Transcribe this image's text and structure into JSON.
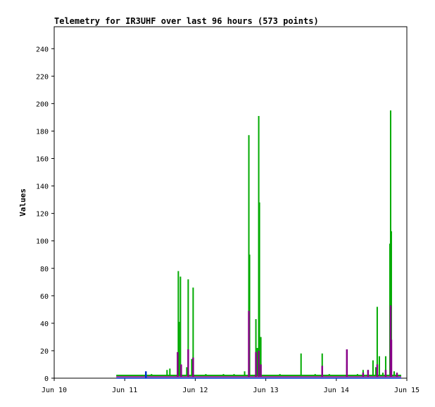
{
  "chart_data": {
    "type": "line",
    "title": "Telemetry for IR3UHF over last 96 hours (573 points)",
    "xlabel": "",
    "ylabel": "Values",
    "ylim": [
      0,
      256
    ],
    "yticks": [
      0,
      20,
      40,
      60,
      80,
      100,
      120,
      140,
      160,
      180,
      200,
      220,
      240
    ],
    "xticks": [
      "Jun 10",
      "Jun 11",
      "Jun 12",
      "Jun 13",
      "Jun 14",
      "Jun 15"
    ],
    "grid": false,
    "legend": "none",
    "colors": {
      "green": "#00aa00",
      "purple": "#880088",
      "blue": "#0033cc",
      "red": "#cc0000",
      "darkgreen": "#006600"
    },
    "series": [
      {
        "color": "#00aa00",
        "baseline": 2,
        "x_start_day": 0.88,
        "spikes": [
          [
            1.38,
            3
          ],
          [
            1.6,
            6
          ],
          [
            1.64,
            7
          ],
          [
            1.76,
            78
          ],
          [
            1.77,
            41
          ],
          [
            1.79,
            74
          ],
          [
            1.88,
            8
          ],
          [
            1.9,
            72
          ],
          [
            1.95,
            14
          ],
          [
            1.97,
            66
          ],
          [
            2.15,
            3
          ],
          [
            2.4,
            3
          ],
          [
            2.55,
            3
          ],
          [
            2.7,
            5
          ],
          [
            2.76,
            177
          ],
          [
            2.77,
            90
          ],
          [
            2.86,
            43
          ],
          [
            2.88,
            22
          ],
          [
            2.9,
            191
          ],
          [
            2.91,
            128
          ],
          [
            2.93,
            30
          ],
          [
            3.2,
            3
          ],
          [
            3.5,
            18
          ],
          [
            3.7,
            3
          ],
          [
            3.8,
            18
          ],
          [
            3.9,
            3
          ],
          [
            4.15,
            10
          ],
          [
            4.3,
            3
          ],
          [
            4.38,
            6
          ],
          [
            4.45,
            6
          ],
          [
            4.52,
            13
          ],
          [
            4.56,
            8
          ],
          [
            4.58,
            52
          ],
          [
            4.61,
            16
          ],
          [
            4.66,
            4
          ],
          [
            4.7,
            16
          ],
          [
            4.76,
            98
          ],
          [
            4.77,
            195
          ],
          [
            4.78,
            107
          ],
          [
            4.82,
            5
          ],
          [
            4.86,
            3
          ]
        ]
      },
      {
        "color": "#880088",
        "baseline": 1,
        "x_start_day": 0.88,
        "spikes": [
          [
            1.75,
            19
          ],
          [
            1.8,
            10
          ],
          [
            1.9,
            21
          ],
          [
            1.97,
            15
          ],
          [
            2.76,
            49
          ],
          [
            2.86,
            19
          ],
          [
            2.9,
            20
          ],
          [
            2.93,
            10
          ],
          [
            3.8,
            9
          ],
          [
            4.15,
            21
          ],
          [
            4.38,
            4
          ],
          [
            4.45,
            6
          ],
          [
            4.58,
            10
          ],
          [
            4.7,
            6
          ],
          [
            4.77,
            53
          ],
          [
            4.78,
            28
          ],
          [
            4.86,
            4
          ]
        ]
      },
      {
        "color": "#0033cc",
        "baseline": 0,
        "x_start_day": 0.88,
        "spikes": [
          [
            1.3,
            5
          ]
        ]
      }
    ]
  }
}
